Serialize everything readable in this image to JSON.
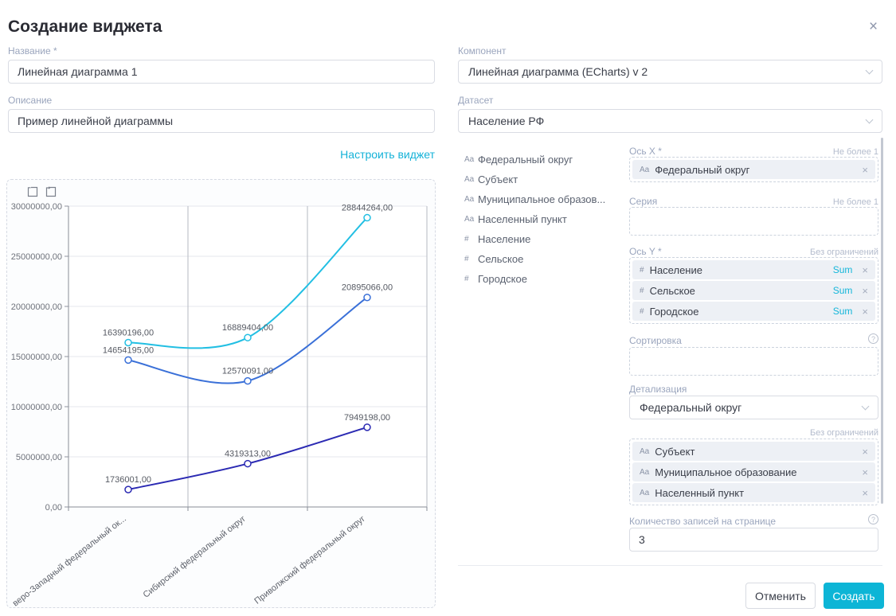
{
  "modal": {
    "title": "Создание виджета",
    "close_icon": "×"
  },
  "left": {
    "name": {
      "label": "Название *",
      "value": "Линейная диаграмма 1"
    },
    "description": {
      "label": "Описание",
      "value": "Пример линейной диаграммы"
    },
    "configure_link": "Настроить виджет"
  },
  "right": {
    "component": {
      "label": "Компонент",
      "value": "Линейная диаграмма (ECharts) v 2"
    },
    "dataset": {
      "label": "Датасет",
      "value": "Население РФ"
    },
    "fields": [
      {
        "prefix": "Aa",
        "name": "Федеральный округ"
      },
      {
        "prefix": "Aa",
        "name": "Субъект"
      },
      {
        "prefix": "Aa",
        "name": "Муниципальное образов..."
      },
      {
        "prefix": "Aa",
        "name": "Населенный пункт"
      },
      {
        "prefix": "#",
        "name": "Население"
      },
      {
        "prefix": "#",
        "name": "Сельское"
      },
      {
        "prefix": "#",
        "name": "Городское"
      }
    ],
    "axis_x": {
      "label": "Ось X *",
      "limit": "Не более 1",
      "chips": [
        {
          "prefix": "Aa",
          "name": "Федеральный округ",
          "remove": "×"
        }
      ]
    },
    "series_field": {
      "label": "Серия",
      "limit": "Не более 1"
    },
    "axis_y": {
      "label": "Ось Y *",
      "limit": "Без ограничений",
      "chips": [
        {
          "prefix": "#",
          "name": "Население",
          "agg": "Sum",
          "remove": "×"
        },
        {
          "prefix": "#",
          "name": "Сельское",
          "agg": "Sum",
          "remove": "×"
        },
        {
          "prefix": "#",
          "name": "Городское",
          "agg": "Sum",
          "remove": "×"
        }
      ]
    },
    "sorting": {
      "label": "Сортировка",
      "help_icon": "?"
    },
    "detail": {
      "label": "Детализация",
      "value": "Федеральный округ",
      "limit": "Без ограничений",
      "chips": [
        {
          "prefix": "Aa",
          "name": "Субъект",
          "remove": "×"
        },
        {
          "prefix": "Aa",
          "name": "Муниципальное образование",
          "remove": "×"
        },
        {
          "prefix": "Aa",
          "name": "Населенный пункт",
          "remove": "×"
        }
      ]
    },
    "page_size": {
      "label": "Количество записей на странице",
      "value": "3",
      "help_icon": "?"
    },
    "footer": {
      "cancel_label": "Отменить",
      "create_label": "Создать"
    }
  },
  "chart_data": {
    "type": "line",
    "title": "",
    "categories": [
      "веро-Западный федеральный ок...",
      "Сибирский федеральный округ",
      "Приволжский федеральный округ"
    ],
    "series": [
      {
        "name": "Население",
        "color": "#22bfe3",
        "values": [
          16390196,
          16889404,
          28844264
        ]
      },
      {
        "name": "Городское",
        "color": "#3a70d8",
        "values": [
          14654195,
          12570091,
          20895066
        ]
      },
      {
        "name": "Сельское",
        "color": "#2b2ab3",
        "values": [
          1736001,
          4319313,
          7949198
        ]
      }
    ],
    "ylim": [
      0,
      30000000
    ],
    "y_ticks": [
      0,
      5000000,
      10000000,
      15000000,
      20000000,
      25000000,
      30000000
    ],
    "decimal_separator": ",",
    "value_labels": true,
    "smooth": true,
    "grid": true,
    "legend": false,
    "x_label_rotation": -38,
    "toolbox_icons": [
      "marquee-zoom-icon",
      "restore-icon"
    ]
  }
}
